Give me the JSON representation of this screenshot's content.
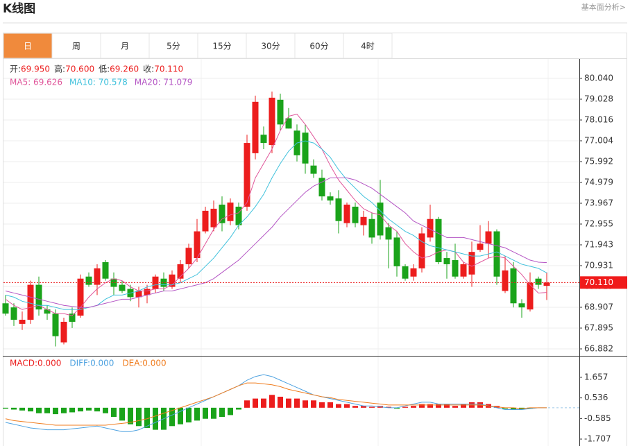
{
  "header": {
    "title": "K线图",
    "link": "基本面分析>"
  },
  "tabs": [
    "日",
    "周",
    "月",
    "5分",
    "15分",
    "30分",
    "60分",
    "4时"
  ],
  "active_tab": 0,
  "info": [
    {
      "label": "开:",
      "value": "69.950"
    },
    {
      "label": "高:",
      "value": "70.600"
    },
    {
      "label": "低:",
      "value": "69.260"
    },
    {
      "label": "收:",
      "value": "70.110"
    }
  ],
  "chart_data": [
    {
      "type": "candlestick",
      "up_color": "#ec1d1d",
      "down_color": "#1aa31a",
      "open": [
        69.1,
        68.9,
        68.1,
        68.3,
        70.0,
        68.8,
        68.6,
        67.2,
        68.6,
        68.5,
        70.4,
        70.0,
        71.1,
        70.3,
        70.0,
        69.8,
        69.4,
        69.5,
        69.8,
        70.3,
        69.9,
        70.3,
        71.0,
        71.3,
        72.6,
        72.8,
        73.9,
        73.1,
        73.8,
        73.8,
        76.4,
        77.3,
        76.8,
        79.0,
        78.1,
        77.5,
        77.4,
        75.8,
        75.2,
        74.3,
        74.2,
        73.0,
        73.8,
        72.9,
        73.2,
        74.0,
        72.8,
        72.3,
        70.9,
        70.4,
        70.8,
        72.3,
        73.2,
        71.3,
        71.2,
        70.4,
        70.5,
        71.7,
        72.0,
        72.6,
        69.7,
        70.8,
        69.1,
        68.8,
        70.3,
        69.95
      ],
      "high": [
        69.5,
        69.1,
        68.7,
        70.2,
        70.4,
        69.0,
        68.8,
        68.4,
        68.9,
        70.5,
        70.6,
        71.0,
        71.2,
        70.6,
        70.2,
        70.0,
        69.9,
        70.0,
        70.5,
        70.6,
        70.7,
        71.2,
        72.0,
        73.2,
        73.8,
        74.1,
        74.3,
        74.2,
        74.0,
        77.3,
        79.2,
        77.7,
        79.4,
        79.3,
        78.6,
        77.8,
        77.8,
        76.1,
        75.6,
        74.5,
        74.6,
        74.0,
        74.0,
        73.6,
        73.5,
        75.1,
        73.0,
        72.6,
        71.0,
        71.0,
        72.8,
        73.9,
        73.3,
        71.6,
        72.0,
        71.1,
        72.1,
        72.9,
        73.1,
        72.7,
        71.4,
        71.1,
        69.3,
        70.6,
        70.4,
        70.6
      ],
      "low": [
        68.5,
        68.0,
        67.8,
        68.1,
        68.5,
        68.3,
        67.0,
        67.1,
        67.9,
        68.4,
        69.9,
        69.5,
        70.2,
        69.5,
        69.6,
        69.2,
        68.9,
        69.1,
        69.6,
        69.7,
        69.8,
        70.1,
        70.8,
        71.1,
        72.5,
        72.6,
        72.6,
        72.9,
        72.7,
        73.6,
        76.1,
        76.6,
        76.4,
        77.5,
        77.6,
        76.0,
        75.4,
        75.2,
        74.1,
        73.9,
        72.5,
        72.8,
        72.8,
        72.4,
        72.0,
        72.2,
        70.8,
        70.4,
        70.2,
        70.2,
        70.6,
        72.1,
        71.0,
        70.3,
        70.3,
        70.3,
        69.9,
        71.6,
        71.3,
        70.0,
        69.6,
        68.9,
        68.4,
        68.7,
        69.8,
        69.26
      ],
      "close": [
        68.6,
        68.3,
        68.3,
        70.0,
        68.8,
        68.6,
        67.5,
        68.2,
        68.2,
        70.3,
        70.0,
        70.8,
        70.3,
        69.9,
        69.7,
        69.4,
        69.7,
        69.8,
        70.4,
        69.9,
        70.5,
        71.0,
        71.8,
        72.6,
        73.6,
        73.7,
        73.0,
        74.0,
        72.9,
        76.9,
        78.9,
        76.9,
        79.1,
        77.8,
        77.6,
        76.3,
        75.9,
        75.4,
        74.3,
        74.1,
        73.1,
        73.9,
        73.0,
        73.3,
        72.3,
        72.4,
        72.2,
        70.9,
        70.3,
        70.8,
        72.5,
        73.2,
        71.1,
        71.0,
        70.4,
        71.0,
        71.6,
        72.0,
        72.6,
        70.4,
        70.7,
        69.1,
        68.9,
        70.1,
        70.0,
        70.11
      ],
      "series": [
        {
          "legend": "MA5: 69.626",
          "color": "#e0569a",
          "values": [
            69.3,
            69.0,
            68.8,
            68.9,
            69.0,
            68.8,
            68.6,
            68.6,
            68.5,
            68.9,
            69.4,
            69.8,
            70.1,
            70.3,
            70.2,
            69.9,
            69.7,
            69.7,
            69.8,
            69.8,
            70.0,
            70.4,
            70.8,
            71.3,
            72.0,
            72.7,
            73.2,
            73.4,
            73.5,
            74.0,
            75.2,
            75.9,
            76.6,
            77.5,
            78.2,
            78.3,
            77.8,
            77.2,
            76.6,
            75.8,
            75.1,
            74.6,
            74.1,
            73.7,
            73.5,
            73.4,
            72.9,
            72.6,
            72.0,
            71.6,
            71.3,
            71.4,
            71.6,
            71.7,
            71.6,
            71.1,
            70.9,
            71.1,
            71.3,
            71.4,
            71.3,
            70.9,
            70.5,
            70.0,
            69.6,
            69.626
          ]
        },
        {
          "legend": "MA10: 70.578",
          "color": "#3fc1dc",
          "values": [
            69.5,
            69.4,
            69.2,
            69.1,
            69.0,
            69.0,
            68.9,
            68.8,
            68.8,
            68.8,
            68.9,
            69.0,
            69.3,
            69.5,
            69.5,
            69.6,
            69.7,
            69.9,
            70.0,
            70.0,
            70.0,
            70.1,
            70.3,
            70.5,
            70.9,
            71.3,
            71.8,
            72.3,
            72.9,
            73.3,
            73.8,
            74.4,
            75.2,
            75.9,
            76.5,
            76.9,
            77.0,
            76.9,
            76.6,
            76.2,
            75.6,
            75.1,
            74.7,
            74.3,
            74.0,
            73.6,
            73.2,
            72.9,
            72.6,
            72.4,
            72.1,
            71.9,
            71.8,
            71.7,
            71.6,
            71.5,
            71.4,
            71.4,
            71.5,
            71.6,
            71.4,
            71.2,
            71.0,
            70.9,
            70.8,
            70.578
          ]
        },
        {
          "legend": "MA20: 71.079",
          "color": "#b455c4",
          "values": [
            69.7,
            69.6,
            69.5,
            69.4,
            69.3,
            69.2,
            69.1,
            69.0,
            68.95,
            68.9,
            68.9,
            69.0,
            69.1,
            69.2,
            69.3,
            69.3,
            69.4,
            69.5,
            69.6,
            69.7,
            69.7,
            69.8,
            69.9,
            70.0,
            70.1,
            70.3,
            70.6,
            70.9,
            71.2,
            71.6,
            72.0,
            72.4,
            72.8,
            73.3,
            73.7,
            74.1,
            74.5,
            74.8,
            75.0,
            75.2,
            75.2,
            75.2,
            75.1,
            74.9,
            74.7,
            74.4,
            74.1,
            73.8,
            73.5,
            73.1,
            72.9,
            72.7,
            72.5,
            72.3,
            72.3,
            72.3,
            72.2,
            72.1,
            72.0,
            71.9,
            71.8,
            71.6,
            71.4,
            71.2,
            71.1,
            71.079
          ]
        }
      ],
      "ylim": [
        66.545,
        80.985
      ],
      "yticks": [
        {
          "value": 80.04,
          "label": "80.040"
        },
        {
          "value": 79.028,
          "label": "79.028"
        },
        {
          "value": 78.016,
          "label": "78.016"
        },
        {
          "value": 77.004,
          "label": "77.004"
        },
        {
          "value": 75.992,
          "label": "75.992"
        },
        {
          "value": 74.979,
          "label": "74.979"
        },
        {
          "value": 73.967,
          "label": "73.967"
        },
        {
          "value": 72.955,
          "label": "72.955"
        },
        {
          "value": 71.943,
          "label": "71.943"
        },
        {
          "value": 70.931,
          "label": "70.931"
        },
        {
          "value": 69.919,
          "label": "69.919"
        },
        {
          "value": 68.907,
          "label": "68.907"
        },
        {
          "value": 67.895,
          "label": "67.895"
        },
        {
          "value": 66.882,
          "label": "66.882"
        }
      ],
      "last_price": {
        "value": 70.11,
        "label": "70.110"
      },
      "grid": true
    },
    {
      "type": "macd",
      "legend": [
        {
          "text": "MACD:0.000",
          "color": "#ec1d1d"
        },
        {
          "text": "DIFF:0.000",
          "color": "#4ea2e0"
        },
        {
          "text": "DEA:0.000",
          "color": "#f07d1f"
        }
      ],
      "histogram": [
        -0.05,
        -0.1,
        -0.15,
        -0.2,
        -0.3,
        -0.3,
        -0.35,
        -0.3,
        -0.25,
        -0.2,
        -0.15,
        -0.2,
        -0.3,
        -0.5,
        -0.7,
        -0.9,
        -1.0,
        -1.1,
        -1.2,
        -1.2,
        -1.0,
        -0.9,
        -0.8,
        -0.7,
        -0.6,
        -0.6,
        -0.5,
        -0.4,
        -0.1,
        0.4,
        0.5,
        0.5,
        0.7,
        0.6,
        0.5,
        0.5,
        0.4,
        0.4,
        0.3,
        0.3,
        0.2,
        0.2,
        0.1,
        0.1,
        0.05,
        0.1,
        0.05,
        -0.05,
        0.05,
        0.1,
        0.2,
        0.2,
        0.2,
        0.2,
        0.1,
        0.2,
        0.3,
        0.3,
        0.2,
        0.1,
        -0.05,
        -0.1,
        -0.1,
        -0.05,
        0,
        0
      ],
      "series": [
        {
          "color": "#4ea2e0",
          "values": [
            -0.8,
            -0.9,
            -1.0,
            -1.1,
            -1.15,
            -1.2,
            -1.2,
            -1.2,
            -1.15,
            -1.1,
            -1.05,
            -1.0,
            -1.1,
            -1.2,
            -1.3,
            -1.3,
            -1.2,
            -1.0,
            -0.8,
            -0.6,
            -0.4,
            -0.2,
            0.0,
            0.2,
            0.4,
            0.6,
            0.8,
            1.0,
            1.2,
            1.5,
            1.7,
            1.8,
            1.7,
            1.5,
            1.3,
            1.1,
            0.9,
            0.7,
            0.6,
            0.5,
            0.4,
            0.3,
            0.2,
            0.1,
            0.1,
            0.05,
            0.0,
            0.0,
            0.1,
            0.2,
            0.3,
            0.3,
            0.2,
            0.2,
            0.2,
            0.2,
            0.2,
            0.2,
            0.1,
            0.0,
            -0.1,
            -0.1,
            -0.1,
            -0.05,
            0.0,
            0.0
          ]
        },
        {
          "color": "#f07d1f",
          "values": [
            -0.6,
            -0.7,
            -0.75,
            -0.8,
            -0.85,
            -0.9,
            -0.95,
            -0.95,
            -0.95,
            -0.95,
            -0.95,
            -0.95,
            -0.95,
            -0.9,
            -0.85,
            -0.8,
            -0.7,
            -0.6,
            -0.45,
            -0.3,
            -0.15,
            0.0,
            0.15,
            0.3,
            0.45,
            0.6,
            0.8,
            1.0,
            1.2,
            1.35,
            1.35,
            1.3,
            1.25,
            1.15,
            1.0,
            0.9,
            0.8,
            0.7,
            0.6,
            0.55,
            0.45,
            0.4,
            0.35,
            0.3,
            0.25,
            0.2,
            0.15,
            0.15,
            0.15,
            0.15,
            0.15,
            0.15,
            0.15,
            0.15,
            0.15,
            0.15,
            0.15,
            0.15,
            0.1,
            0.05,
            0.0,
            0.0,
            -0.05,
            0,
            0,
            0
          ]
        }
      ],
      "ylim": [
        -2.084,
        2.752
      ],
      "yticks": [
        {
          "value": 1.657,
          "label": "1.657"
        },
        {
          "value": 0.536,
          "label": "0.536"
        },
        {
          "value": -0.585,
          "label": "-0.585"
        },
        {
          "value": -1.707,
          "label": "-1.707"
        }
      ]
    }
  ]
}
